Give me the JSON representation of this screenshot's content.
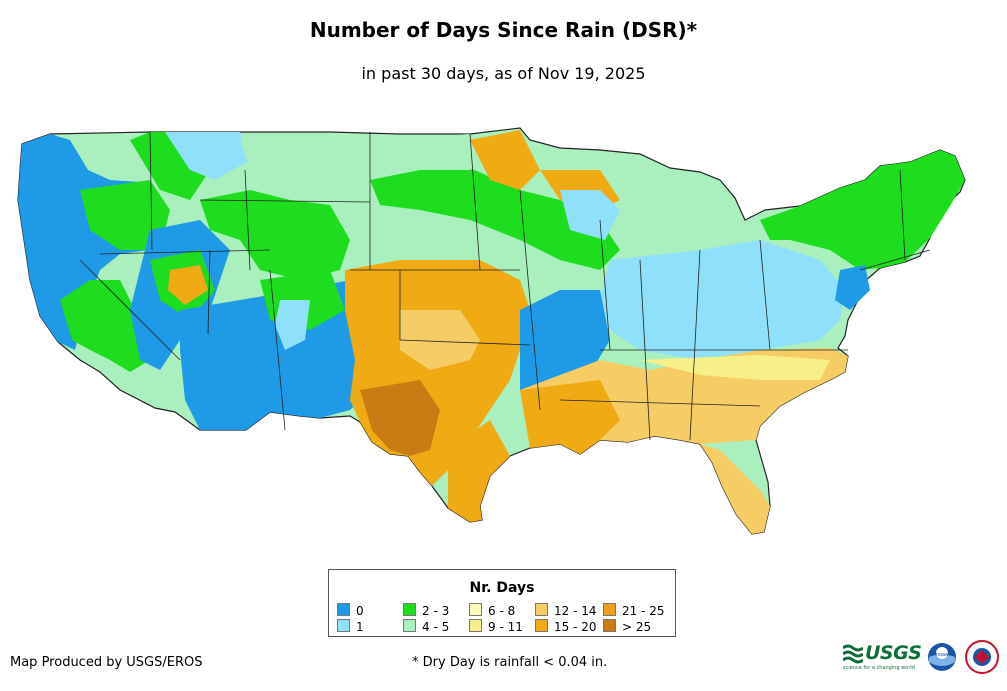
{
  "title": "Number of Days Since Rain (DSR)*",
  "subtitle": "in past 30 days, as of Nov 19, 2025",
  "legend": {
    "title": "Nr. Days",
    "items": [
      {
        "label": "0",
        "color": "#1e9ae6"
      },
      {
        "label": "1",
        "color": "#8fe0fa"
      },
      {
        "label": "2 - 3",
        "color": "#1edc1e"
      },
      {
        "label": "4 - 5",
        "color": "#aaf0be"
      },
      {
        "label": "6 - 8",
        "color": "#fafab9"
      },
      {
        "label": "9 - 11",
        "color": "#f7ef87"
      },
      {
        "label": "12 - 14",
        "color": "#f5cd64"
      },
      {
        "label": "15 - 20",
        "color": "#f0aa14"
      },
      {
        "label": "21 - 25",
        "color": "#ec9f1d"
      },
      {
        "label": "> 25",
        "color": "#c97b14"
      }
    ]
  },
  "footer": {
    "credit": "Map Produced by USGS/EROS",
    "note": "* Dry Day is rainfall < 0.04 in."
  },
  "logos": {
    "usgs": "USGS",
    "usgs_tagline": "science for a changing world",
    "noaa": "noaa",
    "nws": "NATIONAL WEATHER SERVICE"
  }
}
